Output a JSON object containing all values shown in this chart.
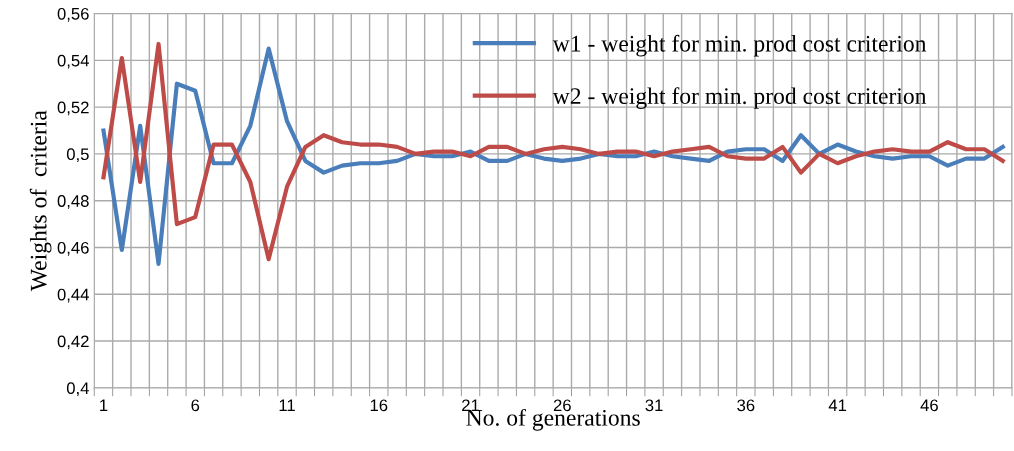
{
  "chart_data": {
    "type": "line",
    "xlabel": "No. of generations",
    "ylabel": "Weights of  criteria",
    "categories": [
      "1",
      null,
      null,
      null,
      null,
      "6",
      null,
      null,
      null,
      null,
      "11",
      null,
      null,
      null,
      null,
      "16",
      null,
      null,
      null,
      null,
      "21",
      null,
      null,
      null,
      null,
      "26",
      null,
      null,
      null,
      null,
      "31",
      null,
      null,
      null,
      null,
      "36",
      null,
      null,
      null,
      null,
      "41",
      null,
      null,
      null,
      null,
      "46",
      null,
      null,
      null,
      null
    ],
    "series": [
      {
        "name": "w1 - weight for min. prod cost criterion",
        "color": "#4a7ebb",
        "values": [
          0.51,
          0.459,
          0.512,
          0.453,
          0.53,
          0.527,
          0.496,
          0.496,
          0.512,
          0.545,
          0.514,
          0.497,
          0.492,
          0.495,
          0.496,
          0.496,
          0.497,
          0.5,
          0.499,
          0.499,
          0.501,
          0.497,
          0.497,
          0.5,
          0.498,
          0.497,
          0.498,
          0.5,
          0.499,
          0.499,
          0.501,
          0.499,
          0.498,
          0.497,
          0.501,
          0.502,
          0.502,
          0.497,
          0.508,
          0.5,
          0.504,
          0.501,
          0.499,
          0.498,
          0.499,
          0.499,
          0.495,
          0.498,
          0.498,
          0.503
        ]
      },
      {
        "name": "w2 - weight for min. prod cost criterion",
        "color": "#be4b48",
        "values": [
          0.49,
          0.541,
          0.488,
          0.547,
          0.47,
          0.473,
          0.504,
          0.504,
          0.488,
          0.455,
          0.486,
          0.503,
          0.508,
          0.505,
          0.504,
          0.504,
          0.503,
          0.5,
          0.501,
          0.501,
          0.499,
          0.503,
          0.503,
          0.5,
          0.502,
          0.503,
          0.502,
          0.5,
          0.501,
          0.501,
          0.499,
          0.501,
          0.502,
          0.503,
          0.499,
          0.498,
          0.498,
          0.503,
          0.492,
          0.5,
          0.496,
          0.499,
          0.501,
          0.502,
          0.501,
          0.501,
          0.505,
          0.502,
          0.502,
          0.497
        ]
      }
    ],
    "ylim": [
      0.4,
      0.56
    ],
    "yticks": [
      {
        "value": 0.4,
        "label": "0,4"
      },
      {
        "value": 0.42,
        "label": "0,42"
      },
      {
        "value": 0.44,
        "label": "0,44"
      },
      {
        "value": 0.46,
        "label": "0,46"
      },
      {
        "value": 0.48,
        "label": "0,48"
      },
      {
        "value": 0.5,
        "label": "0,5"
      },
      {
        "value": 0.52,
        "label": "0,52"
      },
      {
        "value": 0.54,
        "label": "0,54"
      },
      {
        "value": 0.56,
        "label": "0,56"
      }
    ],
    "grid": true,
    "legend": "top right",
    "marker": "none",
    "line_style": "solid"
  }
}
